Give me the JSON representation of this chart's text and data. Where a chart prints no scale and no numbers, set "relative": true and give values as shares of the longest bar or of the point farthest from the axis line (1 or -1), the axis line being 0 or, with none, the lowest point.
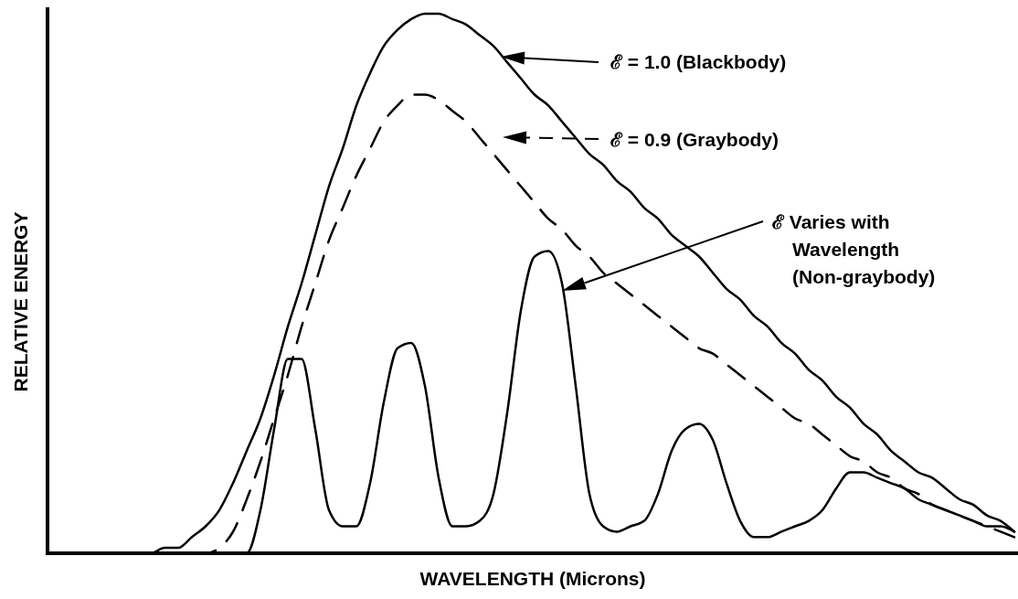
{
  "chart_data": {
    "type": "line",
    "relative": true,
    "xlabel": "WAVELENGTH (Microns)",
    "ylabel": "RELATIVE ENERGY",
    "legend": "top right",
    "categories": [
      null,
      null,
      null,
      null,
      null,
      null,
      null,
      null,
      null,
      null,
      null,
      null,
      null,
      null,
      null,
      null,
      null,
      null,
      null,
      null,
      null,
      null,
      null,
      null,
      null,
      null,
      null,
      null,
      null,
      null,
      null,
      null,
      null,
      null,
      null,
      null,
      null,
      null,
      null,
      null,
      null,
      null,
      null,
      null,
      null,
      null,
      null,
      null,
      null,
      null,
      null,
      null,
      null,
      null,
      null,
      null,
      null,
      null,
      null,
      null,
      null,
      null,
      null,
      null,
      null,
      null,
      null,
      null,
      null,
      null,
      null
    ],
    "series": [
      {
        "name": "ℰ = 1.0 (Blackbody)",
        "color": "#000000",
        "line_style": "solid",
        "values": [
          0,
          0,
          0,
          0,
          0,
          0,
          0,
          0,
          0.01,
          0.01,
          0.03,
          0.05,
          0.08,
          0.13,
          0.19,
          0.25,
          0.33,
          0.42,
          0.5,
          0.59,
          0.68,
          0.75,
          0.83,
          0.89,
          0.94,
          0.97,
          0.99,
          1.0,
          1.0,
          0.99,
          0.98,
          0.96,
          0.94,
          0.91,
          0.88,
          0.85,
          0.83,
          0.8,
          0.77,
          0.74,
          0.72,
          0.69,
          0.67,
          0.64,
          0.62,
          0.59,
          0.57,
          0.55,
          0.52,
          0.49,
          0.47,
          0.44,
          0.42,
          0.39,
          0.37,
          0.34,
          0.32,
          0.29,
          0.27,
          0.24,
          0.22,
          0.19,
          0.17,
          0.15,
          0.14,
          0.12,
          0.1,
          0.09,
          0.07,
          0.06,
          0.04
        ]
      },
      {
        "name": "ℰ = 0.9 (Graybody)",
        "color": "#000000",
        "line_style": "dashed",
        "values": [
          0,
          0,
          0,
          0,
          0,
          0,
          0,
          0,
          0,
          0,
          0,
          0,
          0.01,
          0.04,
          0.1,
          0.17,
          0.25,
          0.33,
          0.42,
          0.5,
          0.58,
          0.64,
          0.7,
          0.75,
          0.8,
          0.83,
          0.85,
          0.85,
          0.84,
          0.82,
          0.8,
          0.77,
          0.74,
          0.71,
          0.68,
          0.65,
          0.62,
          0.6,
          0.57,
          0.55,
          0.52,
          0.5,
          0.48,
          0.46,
          0.44,
          0.42,
          0.4,
          0.38,
          0.37,
          0.35,
          0.33,
          0.31,
          0.29,
          0.27,
          0.25,
          0.24,
          0.22,
          0.2,
          0.18,
          0.17,
          0.15,
          0.14,
          0.12,
          0.11,
          0.09,
          0.08,
          0.07,
          0.06,
          0.05,
          0.04,
          0.03
        ]
      },
      {
        "name": "ℰ Varies with Wavelength (Non-graybody)",
        "color": "#000000",
        "line_style": "solid",
        "values": [
          0,
          0,
          0,
          0,
          0,
          0,
          0,
          0,
          0,
          0,
          0,
          0,
          0,
          0,
          0,
          0.08,
          0.23,
          0.36,
          0.36,
          0.23,
          0.08,
          0.05,
          0.05,
          0.13,
          0.28,
          0.38,
          0.39,
          0.31,
          0.14,
          0.05,
          0.05,
          0.06,
          0.11,
          0.26,
          0.45,
          0.55,
          0.56,
          0.5,
          0.31,
          0.11,
          0.05,
          0.04,
          0.05,
          0.06,
          0.11,
          0.19,
          0.23,
          0.24,
          0.21,
          0.13,
          0.06,
          0.03,
          0.03,
          0.04,
          0.05,
          0.06,
          0.08,
          0.12,
          0.15,
          0.15,
          0.14,
          0.13,
          0.12,
          0.1,
          0.09,
          0.08,
          0.07,
          0.06,
          0.05,
          0.05,
          0.04
        ]
      }
    ]
  }
}
